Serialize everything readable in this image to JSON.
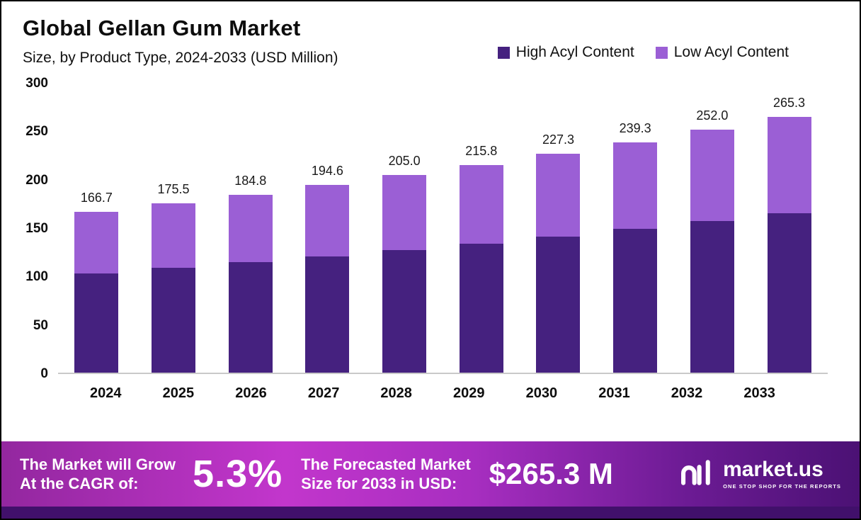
{
  "header": {
    "title": "Global Gellan Gum Market",
    "subtitle": "Size, by Product Type, 2024-2033 (USD Million)"
  },
  "legend": [
    {
      "label": "High Acyl Content",
      "color": "#45217f"
    },
    {
      "label": "Low Acyl Content",
      "color": "#9b5fd5"
    }
  ],
  "chart_data": {
    "type": "bar",
    "stacked": true,
    "title": "Global Gellan Gum Market Size, by Product Type, 2024-2033 (USD Million)",
    "categories": [
      "2024",
      "2025",
      "2026",
      "2027",
      "2028",
      "2029",
      "2030",
      "2031",
      "2032",
      "2033"
    ],
    "series": [
      {
        "name": "High Acyl Content",
        "color": "#45217f",
        "values": [
          103.0,
          108.5,
          114.5,
          120.5,
          127.0,
          134.0,
          141.5,
          149.5,
          157.0,
          165.5
        ]
      },
      {
        "name": "Low Acyl Content",
        "color": "#9b5fd5",
        "values": [
          63.7,
          67.0,
          70.3,
          74.1,
          78.0,
          81.8,
          85.8,
          89.8,
          95.0,
          99.8
        ]
      }
    ],
    "totals": [
      166.7,
      175.5,
      184.8,
      194.6,
      205.0,
      215.8,
      227.3,
      239.3,
      252.0,
      265.3
    ],
    "total_labels": [
      "166.7",
      "175.5",
      "184.8",
      "194.6",
      "205.0",
      "215.8",
      "227.3",
      "239.3",
      "252.0",
      "265.3"
    ],
    "xlabel": "",
    "ylabel": "",
    "ylim": [
      0,
      300
    ],
    "yticks": [
      "300",
      "250",
      "200",
      "150",
      "100",
      "50",
      "0"
    ],
    "grid": false,
    "legend_position": "top-right"
  },
  "banner": {
    "cagr_label_line1": "The Market will Grow",
    "cagr_label_line2": "At the CAGR of:",
    "cagr_value": "5.3%",
    "forecast_label_line1": "The Forecasted Market",
    "forecast_label_line2": "Size for 2033 in USD:",
    "forecast_value": "$265.3 M",
    "brand_name": "market.us",
    "brand_tagline": "One Stop Shop For The Reports"
  }
}
